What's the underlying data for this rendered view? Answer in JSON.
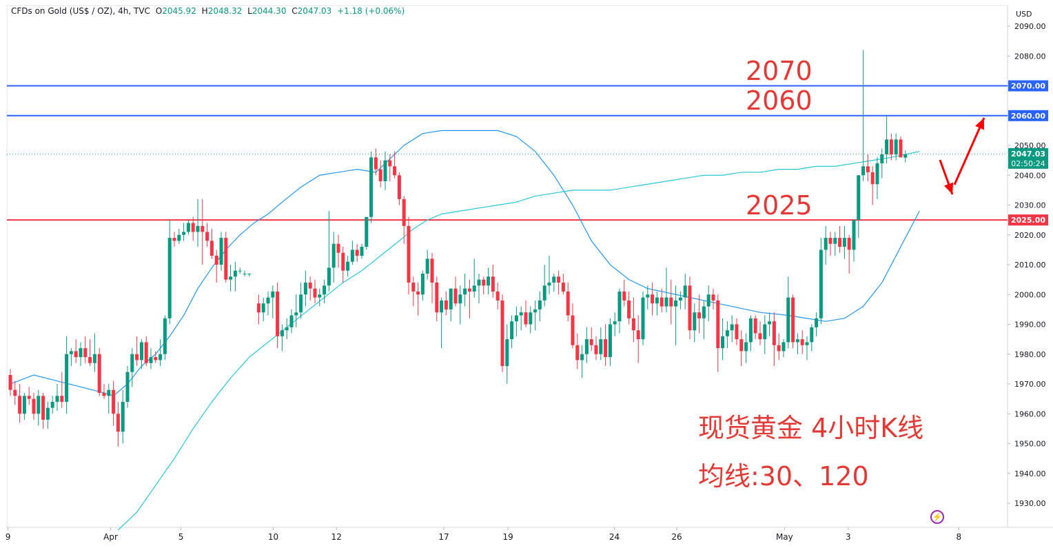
{
  "legend": {
    "symbol": "CFDs on Gold (US$ / OZ), 4h, TVC",
    "open_label": "O",
    "open": "2045.92",
    "high_label": "H",
    "high": "2048.32",
    "low_label": "L",
    "low": "2044.30",
    "close_label": "C",
    "close": "2047.03",
    "change": "+1.18 (+0.06%)"
  },
  "currency": "USD",
  "annotations": {
    "level_2070": "2070",
    "level_2060": "2060",
    "level_2025": "2025",
    "caption_line1": "现货黄金 4小时K线",
    "caption_line2": "均线:30、120"
  },
  "colors": {
    "up": "#089981",
    "down": "#f23645",
    "blue_line": "#2962ff",
    "red_line": "#f23645",
    "ma30": "#2196f3",
    "ma120": "#26c6da",
    "annotation": "#e53935"
  },
  "chart_data": {
    "type": "candlestick",
    "timeframe": "4h",
    "ylim": [
      1921,
      2097
    ],
    "yticks": [
      2090,
      2080,
      2070,
      2060,
      2050,
      2040,
      2030,
      2020,
      2010,
      2000,
      1990,
      1980,
      1970,
      1960,
      1950,
      1940,
      1930
    ],
    "xticks": [
      {
        "label": "9",
        "x": -0.5
      },
      {
        "label": "Apr",
        "x": 21.4
      },
      {
        "label": "5",
        "x": 36.4
      },
      {
        "label": "10",
        "x": 56.1
      },
      {
        "label": "12",
        "x": 69.6
      },
      {
        "label": "17",
        "x": 92.5
      },
      {
        "label": "19",
        "x": 106.2
      },
      {
        "label": "24",
        "x": 128.9
      },
      {
        "label": "26",
        "x": 142.2
      },
      {
        "label": "May",
        "x": 165.2
      },
      {
        "label": "3",
        "x": 178.8
      },
      {
        "label": "8",
        "x": 202.4
      }
    ],
    "horizontal_lines": [
      {
        "value": 2070.0,
        "label": "2070.00",
        "color": "#2962ff"
      },
      {
        "value": 2060.0,
        "label": "2060.00",
        "color": "#2962ff"
      },
      {
        "value": 2025.0,
        "label": "2025.00",
        "color": "#f23645"
      }
    ],
    "last_price": {
      "value": 2047.03,
      "label": "2047.03",
      "countdown": "02:50:24"
    },
    "candles": [
      [
        1973,
        1975,
        1966,
        1968
      ],
      [
        1968,
        1971,
        1963,
        1966
      ],
      [
        1966,
        1970,
        1957,
        1960
      ],
      [
        1960,
        1967,
        1958,
        1966
      ],
      [
        1966,
        1969,
        1963,
        1965
      ],
      [
        1965,
        1967,
        1958,
        1960
      ],
      [
        1960,
        1968,
        1956,
        1966
      ],
      [
        1966,
        1967,
        1955,
        1958
      ],
      [
        1958,
        1964,
        1955,
        1962
      ],
      [
        1962,
        1966,
        1960,
        1964
      ],
      [
        1964,
        1970,
        1961,
        1966
      ],
      [
        1966,
        1974,
        1962,
        1964
      ],
      [
        1964,
        1986,
        1960,
        1980
      ],
      [
        1980,
        1982,
        1976,
        1981
      ],
      [
        1981,
        1985,
        1977,
        1979
      ],
      [
        1979,
        1984,
        1976,
        1982
      ],
      [
        1982,
        1986,
        1977,
        1979
      ],
      [
        1979,
        1985,
        1976,
        1977
      ],
      [
        1977,
        1987,
        1974,
        1980
      ],
      [
        1980,
        1982,
        1966,
        1967
      ],
      [
        1967,
        1970,
        1965,
        1966
      ],
      [
        1966,
        1970,
        1960,
        1968
      ],
      [
        1968,
        1971,
        1956,
        1960
      ],
      [
        1960,
        1964,
        1949,
        1954
      ],
      [
        1954,
        1968,
        1950,
        1964
      ],
      [
        1964,
        1976,
        1962,
        1974
      ],
      [
        1974,
        1982,
        1969,
        1980
      ],
      [
        1980,
        1986,
        1976,
        1978
      ],
      [
        1978,
        1985,
        1975,
        1984
      ],
      [
        1984,
        1986,
        1976,
        1977
      ],
      [
        1977,
        1982,
        1975,
        1979
      ],
      [
        1979,
        1981,
        1977,
        1978
      ],
      [
        1978,
        1985,
        1976,
        1980
      ],
      [
        1980,
        1993,
        1978,
        1992
      ],
      [
        1992,
        2025,
        1990,
        2019
      ],
      [
        2019,
        2021,
        2016,
        2018
      ],
      [
        2018,
        2022,
        2017,
        2020
      ],
      [
        2020,
        2024,
        2018,
        2021
      ],
      [
        2021,
        2025,
        2020,
        2024
      ],
      [
        2024,
        2026,
        2018,
        2021
      ],
      [
        2021,
        2032,
        2016,
        2023
      ],
      [
        2023,
        2032,
        2010,
        2021
      ],
      [
        2021,
        2024,
        2016,
        2018
      ],
      [
        2018,
        2022,
        2012,
        2013
      ],
      [
        2013,
        2015,
        2004,
        2010
      ],
      [
        2010,
        2021,
        2008,
        2019
      ],
      [
        2019,
        2021,
        2004,
        2005
      ],
      [
        2005,
        2010,
        2001,
        2006
      ],
      [
        2006,
        2011,
        2001,
        2008
      ],
      [
        2008,
        2009,
        2007,
        2008
      ],
      [
        2007,
        2008,
        2006,
        2007
      ],
      [
        2007,
        2007,
        2006,
        2007
      ],
      null,
      [
        1997,
        2000,
        1990,
        1994
      ],
      [
        1994,
        1999,
        1991,
        1997
      ],
      [
        1997,
        2001,
        1993,
        1999
      ],
      [
        1999,
        2003,
        1992,
        2001
      ],
      [
        2001,
        2004,
        1982,
        1986
      ],
      [
        1986,
        1990,
        1981,
        1988
      ],
      [
        1988,
        1992,
        1985,
        1989
      ],
      [
        1989,
        1995,
        1987,
        1993
      ],
      [
        1993,
        2000,
        1989,
        1994
      ],
      [
        1994,
        2004,
        1992,
        2000
      ],
      [
        2000,
        2008,
        1996,
        2004
      ],
      [
        2004,
        2006,
        1998,
        2002
      ],
      [
        2002,
        2005,
        1997,
        1999
      ],
      [
        1999,
        2002,
        1996,
        2000
      ],
      [
        2000,
        2005,
        1997,
        2003
      ],
      [
        2003,
        2028,
        2001,
        2009
      ],
      [
        2009,
        2021,
        2004,
        2017
      ],
      [
        2017,
        2020,
        2009,
        2014
      ],
      [
        2014,
        2016,
        2004,
        2008
      ],
      [
        2008,
        2013,
        2006,
        2011
      ],
      [
        2011,
        2018,
        2010,
        2015
      ],
      [
        2015,
        2017,
        2011,
        2013
      ],
      [
        2013,
        2017,
        2012,
        2016
      ],
      [
        2016,
        2026,
        2015,
        2026
      ],
      [
        2026,
        2048,
        2024,
        2046
      ],
      [
        2046,
        2049,
        2040,
        2042
      ],
      [
        2042,
        2045,
        2036,
        2038
      ],
      [
        2038,
        2048,
        2035,
        2045
      ],
      [
        2045,
        2047,
        2038,
        2043
      ],
      [
        2043,
        2048,
        2039,
        2040
      ],
      [
        2040,
        2041,
        2030,
        2032
      ],
      [
        2032,
        2033,
        2017,
        2023
      ],
      [
        2023,
        2026,
        2000,
        2004
      ],
      [
        2004,
        2006,
        1996,
        2001
      ],
      [
        2001,
        2004,
        1993,
        2000
      ],
      [
        2000,
        2008,
        1998,
        2007
      ],
      [
        2007,
        2015,
        2005,
        2012
      ],
      [
        2012,
        2014,
        1997,
        2004
      ],
      [
        2004,
        2006,
        1991,
        1994
      ],
      [
        1994,
        1999,
        1982,
        1998
      ],
      [
        1998,
        2001,
        1993,
        1995
      ],
      [
        1995,
        1999,
        1991,
        2002
      ],
      [
        2002,
        2006,
        1996,
        1997
      ],
      [
        1997,
        2003,
        1990,
        2000
      ],
      [
        2000,
        2007,
        1996,
        2002
      ],
      [
        2002,
        2005,
        1992,
        2001
      ],
      [
        2001,
        2012,
        1999,
        2003
      ],
      [
        2003,
        2007,
        1997,
        2005
      ],
      [
        2005,
        2006,
        2000,
        2003
      ],
      [
        2003,
        2009,
        2000,
        2006
      ],
      [
        2006,
        2010,
        1999,
        2001
      ],
      [
        2001,
        2004,
        1995,
        1998
      ],
      [
        1998,
        2000,
        1974,
        1976
      ],
      [
        1976,
        1990,
        1970,
        1985
      ],
      [
        1985,
        1993,
        1982,
        1991
      ],
      [
        1991,
        1996,
        1986,
        1993
      ],
      [
        1993,
        1996,
        1988,
        1994
      ],
      [
        1994,
        1998,
        1989,
        1990
      ],
      [
        1990,
        1996,
        1987,
        1994
      ],
      [
        1994,
        1998,
        1988,
        1995
      ],
      [
        1995,
        2001,
        1991,
        1998
      ],
      [
        1998,
        2010,
        1996,
        2003
      ],
      [
        2003,
        2013,
        2000,
        2004
      ],
      [
        2004,
        2007,
        2001,
        2006
      ],
      [
        2006,
        2008,
        2000,
        2004
      ],
      [
        2004,
        2007,
        2000,
        2001
      ],
      [
        2001,
        2004,
        1991,
        1993
      ],
      [
        1993,
        1997,
        1982,
        1983
      ],
      [
        1983,
        1987,
        1975,
        1978
      ],
      [
        1978,
        1983,
        1972,
        1980
      ],
      [
        1980,
        1989,
        1977,
        1985
      ],
      [
        1985,
        1989,
        1981,
        1983
      ],
      [
        1983,
        1986,
        1978,
        1980
      ],
      [
        1980,
        1989,
        1978,
        1985
      ],
      [
        1985,
        1990,
        1976,
        1979
      ],
      [
        1979,
        1992,
        1976,
        1990
      ],
      [
        1990,
        1994,
        1986,
        1991
      ],
      [
        1991,
        2002,
        1987,
        2001
      ],
      [
        2001,
        2005,
        1996,
        1998
      ],
      [
        1998,
        2001,
        1990,
        1992
      ],
      [
        1992,
        1999,
        1984,
        1988
      ],
      [
        1988,
        1993,
        1977,
        1985
      ],
      [
        1985,
        2001,
        1983,
        1999
      ],
      [
        1999,
        2003,
        1995,
        2000
      ],
      [
        2000,
        2004,
        1993,
        1997
      ],
      [
        1997,
        2001,
        1993,
        1999
      ],
      [
        1999,
        2002,
        1994,
        1996
      ],
      [
        1996,
        2009,
        1994,
        1999
      ],
      [
        1999,
        2005,
        1990,
        1996
      ],
      [
        1996,
        2003,
        1983,
        1998
      ],
      [
        1998,
        2001,
        1995,
        1999
      ],
      [
        1999,
        2007,
        1995,
        2003
      ],
      [
        2003,
        2006,
        1985,
        1988
      ],
      [
        1988,
        1997,
        1984,
        1994
      ],
      [
        1994,
        2000,
        1987,
        1992
      ],
      [
        1992,
        1998,
        1985,
        1996
      ],
      [
        1996,
        2003,
        1991,
        2000
      ],
      [
        2000,
        2002,
        1995,
        1998
      ],
      [
        1998,
        2000,
        1974,
        1982
      ],
      [
        1982,
        1992,
        1978,
        1986
      ],
      [
        1986,
        1991,
        1982,
        1988
      ],
      [
        1988,
        1993,
        1984,
        1990
      ],
      [
        1990,
        1992,
        1983,
        1985
      ],
      [
        1985,
        1988,
        1976,
        1981
      ],
      [
        1981,
        1987,
        1977,
        1984
      ],
      [
        1984,
        1993,
        1981,
        1992
      ],
      [
        1992,
        1993,
        1985,
        1987
      ],
      [
        1987,
        1991,
        1983,
        1985
      ],
      [
        1985,
        1993,
        1980,
        1990
      ],
      [
        1990,
        1994,
        1986,
        1991
      ],
      [
        1991,
        1994,
        1976,
        1983
      ],
      [
        1983,
        1987,
        1978,
        1981
      ],
      [
        1981,
        1985,
        1979,
        1984
      ],
      [
        1984,
        2006,
        1982,
        1999
      ],
      [
        1999,
        2000,
        1982,
        1984
      ],
      [
        1984,
        1987,
        1980,
        1985
      ],
      [
        1985,
        1988,
        1980,
        1983
      ],
      [
        1983,
        1986,
        1978,
        1984
      ],
      [
        1984,
        1990,
        1981,
        1989
      ],
      [
        1989,
        1994,
        1986,
        1992
      ],
      [
        1992,
        2019,
        1990,
        2015
      ],
      [
        2015,
        2023,
        2010,
        2019
      ],
      [
        2019,
        2021,
        2013,
        2017
      ],
      [
        2017,
        2021,
        2013,
        2019
      ],
      [
        2019,
        2023,
        2014,
        2016
      ],
      [
        2016,
        2023,
        2012,
        2019
      ],
      [
        2019,
        2020,
        2007,
        2015
      ],
      [
        2015,
        2025,
        2011,
        2025
      ],
      [
        2025,
        2040,
        2019,
        2040
      ],
      [
        2040,
        2082,
        2038,
        2043
      ],
      [
        2043,
        2047,
        2038,
        2041
      ],
      [
        2041,
        2043,
        2030,
        2037
      ],
      [
        2037,
        2046,
        2032,
        2044
      ],
      [
        2044,
        2049,
        2039,
        2047
      ],
      [
        2047,
        2060,
        2044,
        2052
      ],
      [
        2052,
        2054,
        2045,
        2047
      ],
      [
        2047,
        2054,
        2045,
        2052
      ],
      [
        2052,
        2053,
        2046,
        2046
      ],
      [
        2045.92,
        2048.32,
        2044.3,
        2047.03
      ]
    ],
    "ma30": [
      [
        0,
        1970
      ],
      [
        5,
        1973
      ],
      [
        10,
        1971
      ],
      [
        15,
        1969
      ],
      [
        20,
        1967
      ],
      [
        22,
        1966
      ],
      [
        25,
        1970
      ],
      [
        28,
        1976
      ],
      [
        31,
        1980
      ],
      [
        34,
        1986
      ],
      [
        37,
        1993
      ],
      [
        40,
        2002
      ],
      [
        43,
        2009
      ],
      [
        46,
        2015
      ],
      [
        49,
        2020
      ],
      [
        52,
        2024
      ],
      [
        55,
        2027
      ],
      [
        58,
        2031
      ],
      [
        62,
        2036
      ],
      [
        66,
        2040
      ],
      [
        70,
        2041
      ],
      [
        74,
        2042
      ],
      [
        78,
        2041
      ],
      [
        80,
        2044
      ],
      [
        84,
        2050
      ],
      [
        88,
        2054
      ],
      [
        92,
        2055
      ],
      [
        98,
        2055
      ],
      [
        104,
        2055
      ],
      [
        108,
        2053
      ],
      [
        112,
        2048
      ],
      [
        116,
        2040
      ],
      [
        120,
        2030
      ],
      [
        124,
        2018
      ],
      [
        128,
        2010
      ],
      [
        132,
        2005
      ],
      [
        136,
        2002
      ],
      [
        142,
        2000
      ],
      [
        148,
        1998
      ],
      [
        154,
        1996
      ],
      [
        160,
        1994
      ],
      [
        166,
        1993
      ],
      [
        170,
        1992
      ],
      [
        174,
        1991
      ],
      [
        178,
        1992
      ],
      [
        182,
        1996
      ],
      [
        186,
        2004
      ],
      [
        190,
        2016
      ],
      [
        194,
        2028
      ]
    ],
    "ma120": [
      [
        23,
        1921
      ],
      [
        27,
        1927
      ],
      [
        31,
        1936
      ],
      [
        35,
        1945
      ],
      [
        39,
        1955
      ],
      [
        43,
        1964
      ],
      [
        47,
        1972
      ],
      [
        51,
        1979
      ],
      [
        55,
        1984
      ],
      [
        59,
        1989
      ],
      [
        63,
        1994
      ],
      [
        67,
        1999
      ],
      [
        71,
        2004
      ],
      [
        75,
        2008
      ],
      [
        79,
        2013
      ],
      [
        83,
        2018
      ],
      [
        86,
        2022
      ],
      [
        89,
        2025
      ],
      [
        92,
        2027
      ],
      [
        96,
        2028
      ],
      [
        100,
        2029
      ],
      [
        104,
        2030
      ],
      [
        108,
        2031
      ],
      [
        112,
        2033
      ],
      [
        116,
        2034
      ],
      [
        120,
        2035
      ],
      [
        124,
        2035
      ],
      [
        128,
        2035
      ],
      [
        132,
        2036
      ],
      [
        136,
        2037
      ],
      [
        140,
        2038
      ],
      [
        144,
        2039
      ],
      [
        148,
        2040
      ],
      [
        152,
        2040
      ],
      [
        156,
        2041
      ],
      [
        160,
        2041
      ],
      [
        164,
        2042
      ],
      [
        168,
        2042
      ],
      [
        172,
        2043
      ],
      [
        176,
        2043
      ],
      [
        180,
        2044
      ],
      [
        184,
        2045
      ],
      [
        188,
        2046
      ],
      [
        194,
        2048
      ]
    ]
  }
}
